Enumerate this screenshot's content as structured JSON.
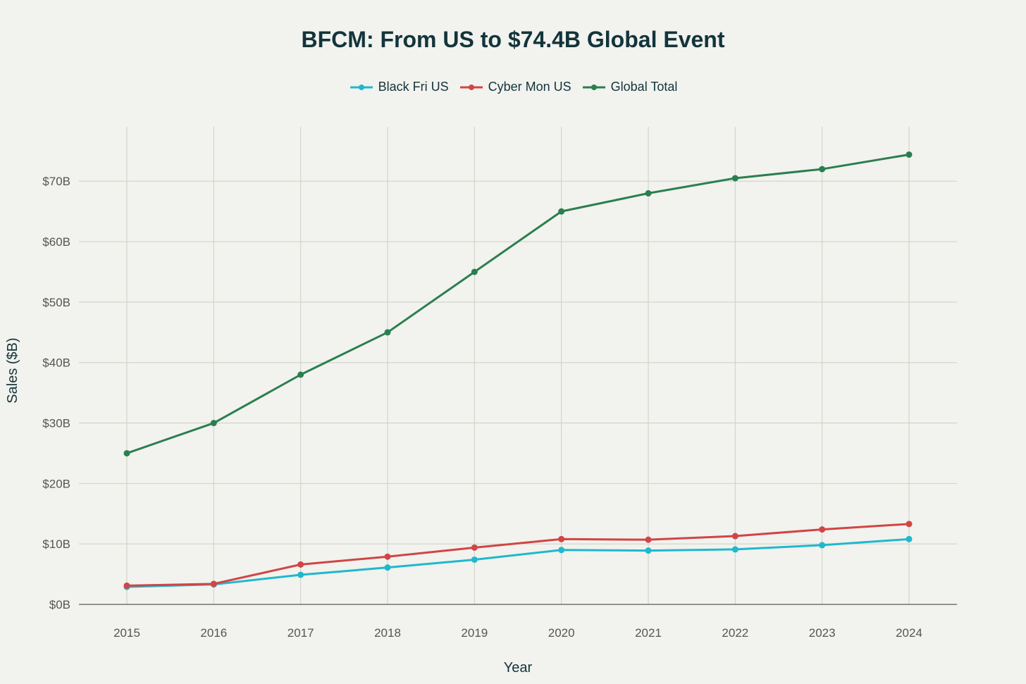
{
  "chart_data": {
    "type": "line",
    "title": "BFCM: From US to $74.4B Global Event",
    "xlabel": "Year",
    "ylabel": "Sales ($B)",
    "x": [
      2015,
      2016,
      2017,
      2018,
      2019,
      2020,
      2021,
      2022,
      2023,
      2024
    ],
    "ylim": [
      0,
      79
    ],
    "yticks": [
      0,
      10,
      20,
      30,
      40,
      50,
      60,
      70
    ],
    "ytick_labels": [
      "$0B",
      "$10B",
      "$20B",
      "$30B",
      "$40B",
      "$50B",
      "$60B",
      "$70B"
    ],
    "grid": true,
    "legend_position": "top-center",
    "series": [
      {
        "name": "Black Fri US",
        "color": "#1fb8cd",
        "values": [
          2.9,
          3.3,
          4.9,
          6.1,
          7.4,
          9.0,
          8.9,
          9.1,
          9.8,
          10.8
        ]
      },
      {
        "name": "Cyber Mon US",
        "color": "#d04545",
        "values": [
          3.1,
          3.4,
          6.6,
          7.9,
          9.4,
          10.8,
          10.7,
          11.3,
          12.4,
          13.3
        ]
      },
      {
        "name": "Global Total",
        "color": "#2a7f4f",
        "values": [
          25,
          30,
          38,
          45,
          55,
          65,
          68,
          70.5,
          72,
          74.4
        ]
      }
    ]
  }
}
